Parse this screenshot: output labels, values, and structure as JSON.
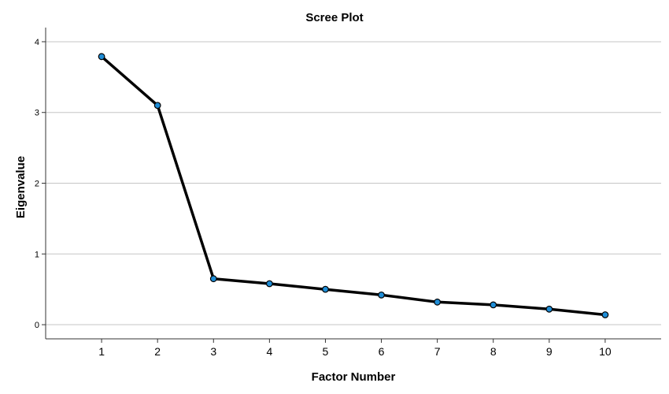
{
  "chart_data": {
    "type": "line",
    "title": "Scree Plot",
    "xlabel": "Factor Number",
    "ylabel": "Eigenvalue",
    "x": [
      1,
      2,
      3,
      4,
      5,
      6,
      7,
      8,
      9,
      10
    ],
    "y": [
      3.79,
      3.1,
      0.65,
      0.58,
      0.5,
      0.42,
      0.32,
      0.28,
      0.22,
      0.14
    ],
    "xlim": [
      0,
      11
    ],
    "ylim": [
      -0.2,
      4.2
    ],
    "xticks": [
      1,
      2,
      3,
      4,
      5,
      6,
      7,
      8,
      9,
      10
    ],
    "yticks": [
      0,
      1,
      2,
      3,
      4
    ],
    "grid": "horizontal",
    "line_color": "#000000",
    "marker_color": "#1f8dd6"
  }
}
